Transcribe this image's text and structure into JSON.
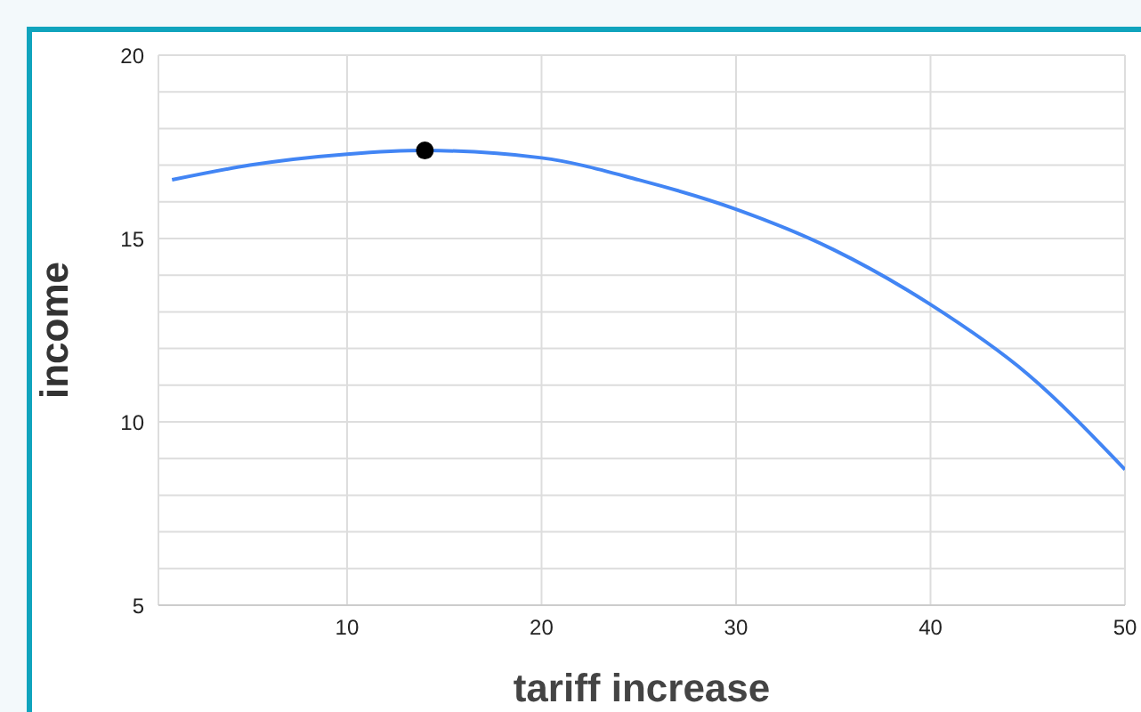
{
  "chart_data": {
    "type": "line",
    "xlabel": "tariff increase",
    "ylabel": "income",
    "xlim": [
      0.3,
      50
    ],
    "xticks": [
      10,
      20,
      30,
      40,
      50
    ],
    "ylim": [
      5,
      20
    ],
    "yticks": [
      5,
      {
        "value": 6,
        "label": null
      },
      {
        "value": 7,
        "label": null
      },
      {
        "value": 8,
        "label": null
      },
      {
        "value": 9,
        "label": null
      },
      10,
      {
        "value": 11,
        "label": null
      },
      {
        "value": 12,
        "label": null
      },
      {
        "value": 13,
        "label": null
      },
      {
        "value": 14,
        "label": null
      },
      15,
      {
        "value": 16,
        "label": null
      },
      {
        "value": 17,
        "label": null
      },
      {
        "value": 18,
        "label": null
      },
      {
        "value": 19,
        "label": null
      },
      20
    ],
    "grid": true,
    "series": [
      {
        "color": "#4285f4",
        "x": [
          1,
          5,
          10,
          14,
          20,
          25,
          30,
          35,
          40,
          45,
          50
        ],
        "values": [
          16.6,
          17.0,
          17.3,
          17.4,
          17.2,
          16.6,
          15.8,
          14.7,
          13.2,
          11.3,
          8.7
        ]
      },
      {
        "type": "scatter",
        "marker": "circle",
        "color": "#000000",
        "x": [
          14
        ],
        "values": [
          17.4
        ]
      }
    ]
  }
}
